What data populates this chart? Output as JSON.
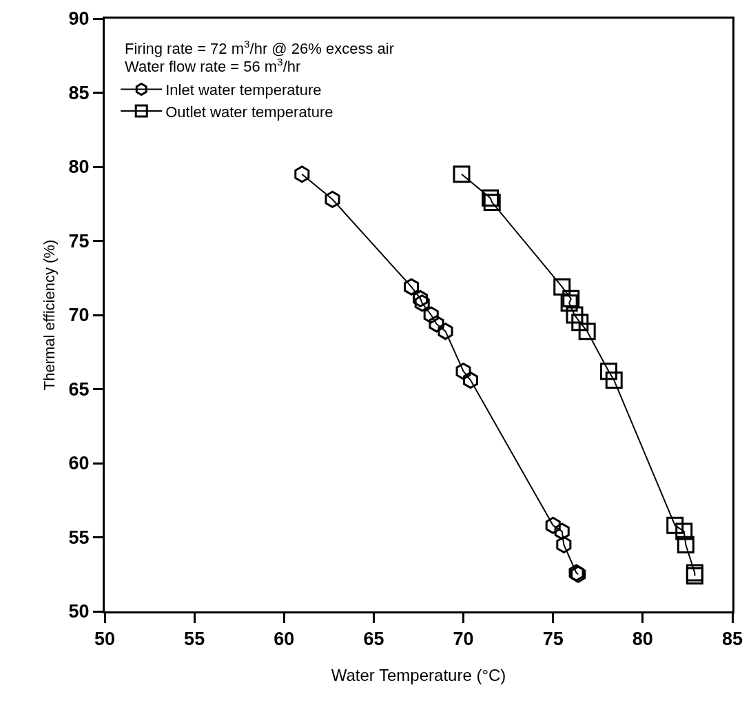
{
  "chart_data": {
    "type": "line",
    "xlabel": "Water Temperature (°C)",
    "ylabel": "Thermal efficiency (%)",
    "annotations": [
      "Firing rate = 72 m$^{3}$/hr @ 26% excess air",
      "Water flow rate = 56 m$^{3}$/hr"
    ],
    "xlim": [
      50,
      85
    ],
    "xticks": [
      50,
      55,
      60,
      65,
      70,
      75,
      80,
      85
    ],
    "ylim": [
      50,
      90
    ],
    "yticks": [
      50,
      55,
      60,
      65,
      70,
      75,
      80,
      85,
      90
    ],
    "grid": false,
    "legend": "top left",
    "line_style": "solid",
    "series": [
      {
        "name": "Inlet water temperature",
        "color": "#000000",
        "marker": "circle",
        "x": [
          61.0,
          62.7,
          67.1,
          67.6,
          67.7,
          68.2,
          68.5,
          69.0,
          70.0,
          70.4,
          75.0,
          75.5,
          75.6,
          76.3,
          76.4
        ],
        "values": [
          79.5,
          77.8,
          71.9,
          71.1,
          70.8,
          70.0,
          69.4,
          68.9,
          66.2,
          65.6,
          55.8,
          55.4,
          54.5,
          52.6,
          52.5
        ]
      },
      {
        "name": "Outlet water temperature",
        "color": "#000000",
        "marker": "square",
        "x": [
          69.9,
          71.5,
          71.6,
          75.5,
          76.0,
          75.9,
          76.2,
          76.5,
          76.9,
          78.1,
          78.4,
          81.8,
          82.3,
          82.4,
          82.9,
          82.9
        ],
        "values": [
          79.5,
          77.9,
          77.6,
          71.9,
          71.1,
          70.8,
          70.0,
          69.5,
          68.9,
          66.2,
          65.6,
          55.8,
          55.4,
          54.5,
          52.6,
          52.4
        ]
      }
    ]
  }
}
